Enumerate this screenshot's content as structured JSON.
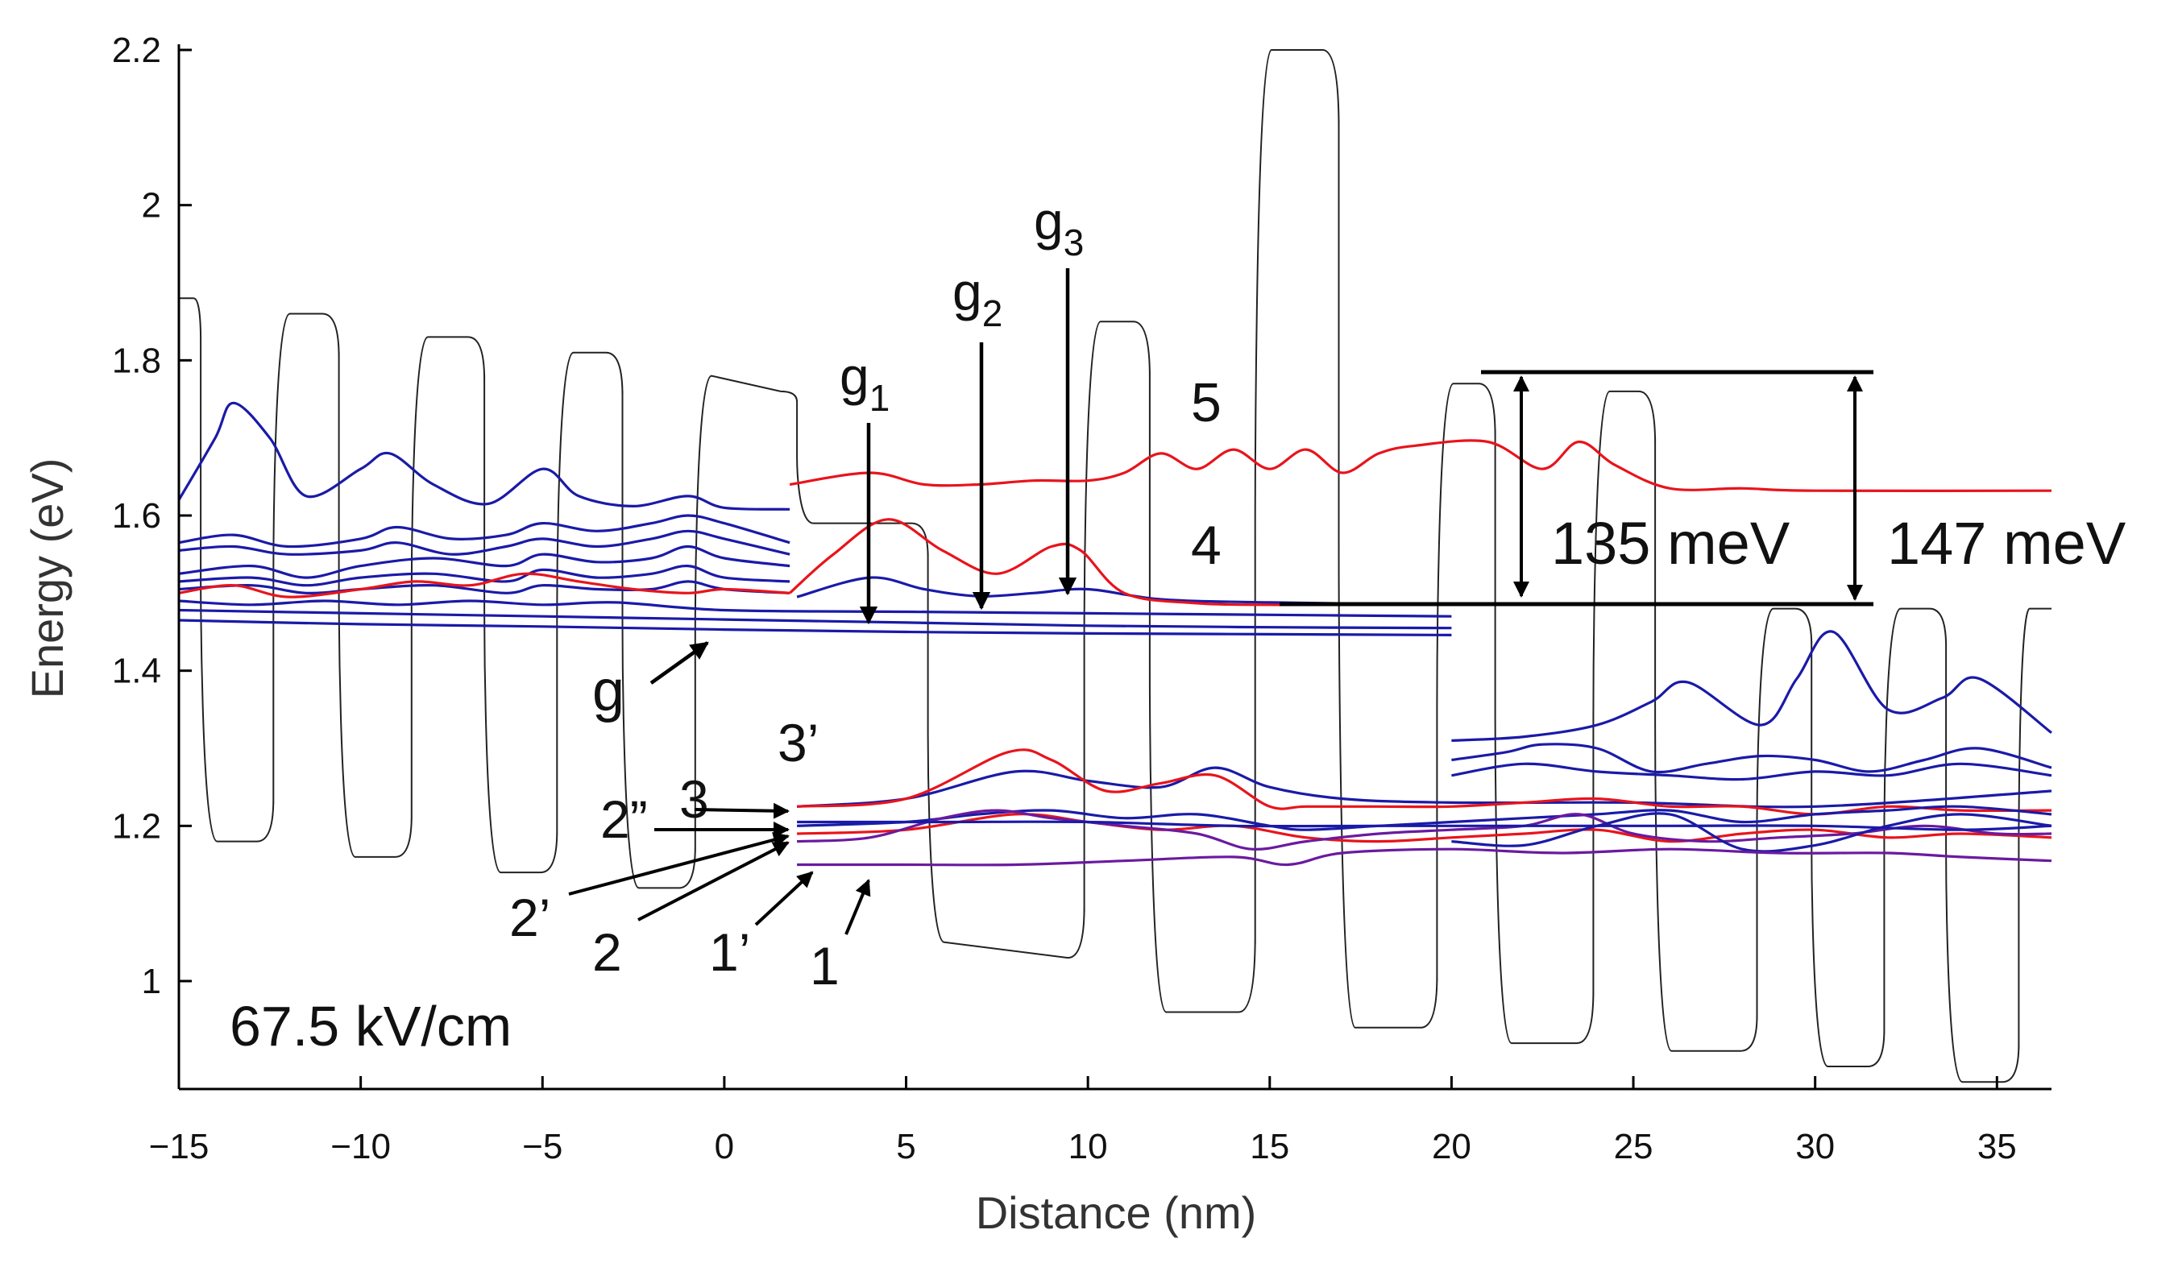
{
  "chart_data": {
    "type": "line",
    "title": "",
    "xlabel": "Distance (nm)",
    "ylabel": "Energy (eV)",
    "xlim": [
      -15,
      36.5
    ],
    "ylim": [
      0.87,
      2.2
    ],
    "xticks": [
      -15,
      -10,
      -5,
      0,
      5,
      10,
      15,
      20,
      25,
      30,
      35
    ],
    "xtick_labels": [
      "−15",
      "−10",
      "−5",
      "0",
      "5",
      "10",
      "15",
      "20",
      "25",
      "30",
      "35"
    ],
    "yticks": [
      1,
      1.2,
      1.4,
      1.6,
      1.8,
      2,
      2.2
    ],
    "ytick_labels": [
      "1",
      "1.2",
      "1.4",
      "1.6",
      "1.8",
      "2",
      "2.2"
    ],
    "colors": {
      "potential": "#222222",
      "blue": "#1a1aa8",
      "red": "#e8141c",
      "purple": "#6a1aa0",
      "arrow": "#000000"
    },
    "potential": {
      "name": "conduction band profile",
      "wells": [
        {
          "x0": -14.4,
          "x1": -12.4,
          "bottom": 1.18
        },
        {
          "x0": -10.6,
          "x1": -8.6,
          "bottom": 1.16
        },
        {
          "x0": -6.6,
          "x1": -4.6,
          "bottom": 1.14
        },
        {
          "x0": -2.8,
          "x1": -0.8,
          "bottom": 1.12
        },
        {
          "x0": 5.6,
          "x1": 9.9,
          "bottom": 1.05,
          "bottom_end": 1.03
        },
        {
          "x0": 11.7,
          "x1": 14.6,
          "bottom": 0.96
        },
        {
          "x0": 16.9,
          "x1": 19.6,
          "bottom": 0.94
        },
        {
          "x0": 21.2,
          "x1": 23.9,
          "bottom": 0.92
        },
        {
          "x0": 25.6,
          "x1": 28.4,
          "bottom": 0.91
        },
        {
          "x0": 29.9,
          "x1": 31.9,
          "bottom": 0.89
        },
        {
          "x0": 33.6,
          "x1": 35.6,
          "bottom": 0.87
        }
      ],
      "barriers": [
        {
          "x0": -15.0,
          "x1": -14.4,
          "top": 1.88
        },
        {
          "x0": -12.4,
          "x1": -10.6,
          "top": 1.86
        },
        {
          "x0": -8.6,
          "x1": -6.6,
          "top": 1.83
        },
        {
          "x0": -4.6,
          "x1": -2.8,
          "top": 1.81
        },
        {
          "x0": -0.8,
          "x1": 2.0,
          "top": 1.78,
          "top_end": 1.76
        },
        {
          "x0": 2.0,
          "x1": 5.6,
          "top": 1.59
        },
        {
          "x0": 9.9,
          "x1": 11.7,
          "top": 1.85
        },
        {
          "x0": 14.6,
          "x1": 16.9,
          "top": 2.2
        },
        {
          "x0": 19.6,
          "x1": 21.2,
          "top": 1.77
        },
        {
          "x0": 23.9,
          "x1": 25.6,
          "top": 1.76
        },
        {
          "x0": 28.4,
          "x1": 29.9,
          "top": 1.48
        },
        {
          "x0": 31.9,
          "x1": 33.6,
          "top": 1.48
        },
        {
          "x0": 35.6,
          "x1": 36.5,
          "top": 1.48
        }
      ]
    },
    "series": [
      {
        "name": "left-blue-1",
        "color": "blue",
        "x": [
          -15,
          -14,
          -13.5,
          -12.5,
          -11.5,
          -10,
          -9.2,
          -8,
          -6.5,
          -5,
          -4,
          -2.5,
          -1,
          0,
          1.8
        ],
        "y": [
          1.62,
          1.7,
          1.745,
          1.7,
          1.625,
          1.66,
          1.68,
          1.64,
          1.615,
          1.66,
          1.625,
          1.612,
          1.625,
          1.61,
          1.608
        ]
      },
      {
        "name": "left-blue-2",
        "color": "blue",
        "x": [
          -15,
          -13.5,
          -12,
          -10,
          -9,
          -7.5,
          -6,
          -5,
          -3.5,
          -2,
          -1,
          0,
          1.8
        ],
        "y": [
          1.565,
          1.575,
          1.56,
          1.57,
          1.585,
          1.57,
          1.575,
          1.59,
          1.58,
          1.59,
          1.6,
          1.59,
          1.565
        ]
      },
      {
        "name": "left-blue-3",
        "color": "blue",
        "x": [
          -15,
          -13.5,
          -12,
          -10,
          -9,
          -7.5,
          -6,
          -5,
          -3.5,
          -2,
          -1,
          0,
          1.8
        ],
        "y": [
          1.555,
          1.56,
          1.55,
          1.555,
          1.565,
          1.55,
          1.56,
          1.57,
          1.56,
          1.57,
          1.58,
          1.57,
          1.55
        ]
      },
      {
        "name": "left-blue-4",
        "color": "blue",
        "x": [
          -15,
          -13,
          -11.5,
          -10,
          -8,
          -6,
          -5,
          -3.5,
          -2,
          -1,
          0,
          1.8
        ],
        "y": [
          1.525,
          1.535,
          1.52,
          1.535,
          1.545,
          1.535,
          1.55,
          1.54,
          1.545,
          1.56,
          1.545,
          1.535
        ]
      },
      {
        "name": "left-blue-5",
        "color": "blue",
        "x": [
          -15,
          -13,
          -11.5,
          -10,
          -8,
          -6,
          -5,
          -3.5,
          -2,
          -1,
          0,
          1.8
        ],
        "y": [
          1.515,
          1.52,
          1.51,
          1.52,
          1.525,
          1.515,
          1.53,
          1.52,
          1.525,
          1.535,
          1.52,
          1.515
        ]
      },
      {
        "name": "left-blue-6",
        "color": "blue",
        "x": [
          -15,
          -13,
          -11.5,
          -10,
          -8,
          -6,
          -5,
          -3.5,
          -2,
          -1,
          0,
          1.8
        ],
        "y": [
          1.505,
          1.51,
          1.5,
          1.505,
          1.51,
          1.5,
          1.51,
          1.505,
          1.505,
          1.515,
          1.505,
          1.5
        ]
      },
      {
        "name": "left-red",
        "color": "red",
        "x": [
          -15,
          -13.5,
          -12,
          -10,
          -8.5,
          -7,
          -5.5,
          -4,
          -2.5,
          -1,
          0,
          1.8
        ],
        "y": [
          1.5,
          1.51,
          1.495,
          1.505,
          1.515,
          1.51,
          1.525,
          1.515,
          1.505,
          1.5,
          1.505,
          1.5
        ]
      },
      {
        "name": "ground-blue-1",
        "color": "blue",
        "x": [
          -15,
          -13,
          -11,
          -9,
          -7,
          -5,
          -3,
          0,
          5,
          10,
          15,
          20
        ],
        "y": [
          1.49,
          1.485,
          1.49,
          1.485,
          1.49,
          1.485,
          1.488,
          1.478,
          1.476,
          1.474,
          1.472,
          1.47
        ]
      },
      {
        "name": "ground-blue-2",
        "color": "blue",
        "x": [
          -15,
          -10,
          -5,
          0,
          5,
          10,
          15,
          20
        ],
        "y": [
          1.478,
          1.474,
          1.47,
          1.466,
          1.462,
          1.458,
          1.456,
          1.455
        ]
      },
      {
        "name": "ground-blue-3",
        "color": "blue",
        "x": [
          -15,
          -10,
          -5,
          0,
          5,
          10,
          15,
          20
        ],
        "y": [
          1.465,
          1.46,
          1.457,
          1.453,
          1.45,
          1.448,
          1.447,
          1.446
        ]
      },
      {
        "name": "g-blue",
        "color": "blue",
        "x": [
          2,
          4,
          5.5,
          7,
          8.5,
          10,
          12,
          15,
          20
        ],
        "y": [
          1.495,
          1.52,
          1.505,
          1.496,
          1.5,
          1.505,
          1.492,
          1.488,
          1.485
        ]
      },
      {
        "name": "red-5",
        "color": "red",
        "x": [
          1.8,
          4,
          5.5,
          7,
          8.5,
          10,
          11,
          12,
          13,
          14,
          15,
          16,
          17,
          18,
          19,
          21,
          22.5,
          23.5,
          24.5,
          26,
          28,
          30,
          36.5
        ],
        "y": [
          1.64,
          1.655,
          1.64,
          1.64,
          1.645,
          1.645,
          1.655,
          1.68,
          1.66,
          1.685,
          1.66,
          1.685,
          1.655,
          1.68,
          1.69,
          1.695,
          1.66,
          1.695,
          1.665,
          1.635,
          1.635,
          1.632,
          1.632
        ]
      },
      {
        "name": "red-4",
        "color": "red",
        "x": [
          1.8,
          3,
          4.5,
          6,
          7.5,
          9,
          9.8,
          11,
          13,
          15,
          15.4
        ],
        "y": [
          1.5,
          1.55,
          1.595,
          1.555,
          1.525,
          1.56,
          1.555,
          1.5,
          1.487,
          1.485,
          1.485
        ]
      },
      {
        "name": "right-blue-1",
        "color": "blue",
        "x": [
          20,
          22,
          24,
          25.5,
          26.5,
          28.5,
          29.5,
          30.5,
          32,
          33.5,
          34.5,
          36.5
        ],
        "y": [
          1.31,
          1.315,
          1.33,
          1.36,
          1.385,
          1.33,
          1.39,
          1.45,
          1.35,
          1.365,
          1.39,
          1.32
        ]
      },
      {
        "name": "right-blue-2",
        "color": "blue",
        "x": [
          20,
          21.5,
          22.5,
          24,
          25.5,
          27,
          28.5,
          30,
          31.5,
          33,
          34.5,
          36.5
        ],
        "y": [
          1.285,
          1.295,
          1.305,
          1.3,
          1.27,
          1.28,
          1.29,
          1.285,
          1.27,
          1.285,
          1.3,
          1.275
        ]
      },
      {
        "name": "right-blue-3",
        "color": "blue",
        "x": [
          20,
          22,
          24,
          26,
          28,
          30,
          32,
          34,
          36.5
        ],
        "y": [
          1.265,
          1.28,
          1.27,
          1.265,
          1.26,
          1.27,
          1.265,
          1.28,
          1.265
        ]
      },
      {
        "name": "mid-blue-a",
        "color": "blue",
        "x": [
          2,
          5,
          8,
          10,
          12,
          13.5,
          15,
          17,
          20,
          25,
          30,
          36.5
        ],
        "y": [
          1.225,
          1.235,
          1.27,
          1.258,
          1.25,
          1.275,
          1.25,
          1.235,
          1.23,
          1.23,
          1.225,
          1.245
        ]
      },
      {
        "name": "mid-red-a",
        "color": "red",
        "x": [
          2,
          5,
          7.8,
          9,
          10.5,
          12,
          13.5,
          15,
          16,
          18,
          20,
          22,
          24,
          26,
          28,
          30,
          32,
          34,
          36.5
        ],
        "y": [
          1.225,
          1.235,
          1.295,
          1.285,
          1.245,
          1.255,
          1.265,
          1.225,
          1.225,
          1.225,
          1.225,
          1.23,
          1.235,
          1.225,
          1.225,
          1.215,
          1.225,
          1.22,
          1.22
        ]
      },
      {
        "name": "mid-blue-b",
        "color": "blue",
        "x": [
          2,
          5,
          7,
          9,
          11,
          13,
          15,
          16,
          18,
          20,
          22,
          24,
          26,
          28,
          30,
          32,
          34,
          36.5
        ],
        "y": [
          1.2,
          1.205,
          1.215,
          1.22,
          1.21,
          1.215,
          1.2,
          1.195,
          1.2,
          1.205,
          1.21,
          1.215,
          1.22,
          1.205,
          1.215,
          1.22,
          1.225,
          1.215
        ]
      },
      {
        "name": "mid-red-b",
        "color": "red",
        "x": [
          2,
          5,
          8,
          10,
          12,
          14,
          16,
          18,
          20,
          22,
          24,
          26,
          28,
          30,
          32,
          34,
          36.5
        ],
        "y": [
          1.19,
          1.195,
          1.215,
          1.205,
          1.195,
          1.2,
          1.185,
          1.18,
          1.185,
          1.19,
          1.195,
          1.18,
          1.19,
          1.195,
          1.185,
          1.19,
          1.185
        ]
      },
      {
        "name": "mid-purple-a",
        "color": "purple",
        "x": [
          2,
          4,
          6,
          7.5,
          9,
          11,
          13,
          14.5,
          16,
          18,
          20,
          22,
          23.5,
          25,
          27,
          29,
          31,
          33,
          35,
          36.5
        ],
        "y": [
          1.18,
          1.185,
          1.21,
          1.22,
          1.21,
          1.2,
          1.19,
          1.17,
          1.18,
          1.19,
          1.195,
          1.2,
          1.215,
          1.19,
          1.18,
          1.185,
          1.19,
          1.2,
          1.19,
          1.19
        ]
      },
      {
        "name": "mid-blue-c",
        "color": "blue",
        "x": [
          2,
          6,
          10,
          14,
          18,
          22,
          26,
          30,
          34,
          36.5
        ],
        "y": [
          1.205,
          1.205,
          1.205,
          1.2,
          1.2,
          1.2,
          1.2,
          1.2,
          1.195,
          1.2
        ]
      },
      {
        "name": "mid-blue-d",
        "color": "blue",
        "x": [
          20,
          22,
          24,
          26,
          28,
          30,
          32,
          34,
          36.5
        ],
        "y": [
          1.18,
          1.175,
          1.2,
          1.215,
          1.17,
          1.175,
          1.2,
          1.215,
          1.2
        ]
      },
      {
        "name": "bottom-purple",
        "color": "purple",
        "x": [
          2,
          5,
          8,
          11,
          14,
          15.5,
          17,
          20,
          23,
          26,
          29,
          32,
          34,
          36.5
        ],
        "y": [
          1.15,
          1.15,
          1.15,
          1.155,
          1.16,
          1.15,
          1.165,
          1.17,
          1.165,
          1.17,
          1.165,
          1.165,
          1.16,
          1.155
        ]
      }
    ],
    "annotations": {
      "field": "67.5 kV/cm",
      "g": "g",
      "g1": {
        "base": "g",
        "sub": "1"
      },
      "g2": {
        "base": "g",
        "sub": "2"
      },
      "g3": {
        "base": "g",
        "sub": "3"
      },
      "level5": "5",
      "level4": "4",
      "level3p": "3’",
      "level3": "3",
      "level2pp": "2”",
      "level2p": "2’",
      "level2": "2",
      "level1p": "1’",
      "level1": "1",
      "delta1": "135 meV",
      "delta2": "147 meV"
    }
  }
}
